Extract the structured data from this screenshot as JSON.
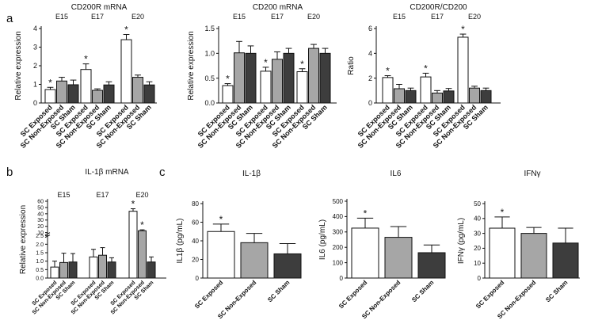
{
  "panel_labels": {
    "a": "a",
    "b": "b",
    "c": "c"
  },
  "chart_data": [
    {
      "id": "cd200r",
      "type": "bar",
      "title": "CD200R mRNA",
      "ylabel": "Relative expression",
      "ylim": [
        0,
        4
      ],
      "yticks": [
        "0",
        "1",
        "2",
        "3",
        "4"
      ],
      "groups": [
        "E15",
        "E17",
        "E20"
      ],
      "categories": [
        "SC Exposed",
        "SC Non-Exposed",
        "SC Sham"
      ],
      "values": [
        [
          0.72,
          1.18,
          0.98
        ],
        [
          1.8,
          0.68,
          0.97
        ],
        [
          3.4,
          1.38,
          0.97
        ]
      ],
      "errors": [
        [
          0.12,
          0.2,
          0.25
        ],
        [
          0.3,
          0.08,
          0.17
        ],
        [
          0.28,
          0.12,
          0.17
        ]
      ],
      "significance": [
        [
          true,
          false,
          false
        ],
        [
          true,
          false,
          false
        ],
        [
          true,
          false,
          false
        ]
      ]
    },
    {
      "id": "cd200",
      "type": "bar",
      "title": "CD200 mRNA",
      "ylabel": "Relative expression",
      "ylim": [
        0,
        1.5
      ],
      "yticks": [
        "0.0",
        "0.5",
        "1.0",
        "1.5"
      ],
      "groups": [
        "E15",
        "E17",
        "E20"
      ],
      "categories": [
        "SC Exposed",
        "SC Non-Exposed",
        "SC Sham"
      ],
      "values": [
        [
          0.35,
          1.01,
          1.0
        ],
        [
          0.64,
          0.88,
          1.0
        ],
        [
          0.63,
          1.1,
          1.0
        ]
      ],
      "errors": [
        [
          0.04,
          0.23,
          0.15
        ],
        [
          0.08,
          0.15,
          0.1
        ],
        [
          0.06,
          0.08,
          0.1
        ]
      ],
      "significance": [
        [
          true,
          false,
          false
        ],
        [
          true,
          false,
          false
        ],
        [
          true,
          false,
          false
        ]
      ]
    },
    {
      "id": "ratio",
      "type": "bar",
      "title": "CD200R/CD200",
      "ylabel": "Ratio",
      "ylim": [
        0,
        6
      ],
      "yticks": [
        "0",
        "2",
        "4",
        "6"
      ],
      "groups": [
        "E15",
        "E17",
        "E20"
      ],
      "categories": [
        "SC Exposed",
        "SC Non-Exposed",
        "SC Sham"
      ],
      "values": [
        [
          2.05,
          1.15,
          1.0
        ],
        [
          2.1,
          0.8,
          0.97
        ],
        [
          5.3,
          1.2,
          1.0
        ]
      ],
      "errors": [
        [
          0.15,
          0.35,
          0.2
        ],
        [
          0.3,
          0.2,
          0.2
        ],
        [
          0.25,
          0.15,
          0.2
        ]
      ],
      "significance": [
        [
          true,
          false,
          false
        ],
        [
          true,
          false,
          false
        ],
        [
          true,
          false,
          false
        ]
      ]
    },
    {
      "id": "il1b_mrna",
      "type": "bar",
      "title": "IL-1β mRNA",
      "ylabel": "Relative expression",
      "ylim": [
        0,
        60
      ],
      "yticks": [
        "0.0",
        "0.5",
        "1.0",
        "1.5",
        "2.0",
        "2.5",
        "10",
        "20",
        "30",
        "40",
        "50",
        "60"
      ],
      "axis_break": {
        "lower": [
          0,
          2.5
        ],
        "upper": [
          10,
          60
        ]
      },
      "groups": [
        "E15",
        "E17",
        "E20"
      ],
      "categories": [
        "SC Exposed",
        "SC Non-Exposed",
        "SC Sham"
      ],
      "values": [
        [
          0.65,
          0.92,
          0.95
        ],
        [
          1.25,
          1.35,
          0.95
        ],
        [
          44,
          13,
          0.95
        ]
      ],
      "errors": [
        [
          0.35,
          0.55,
          0.5
        ],
        [
          0.45,
          0.45,
          0.25
        ],
        [
          4,
          1.5,
          0.3
        ]
      ],
      "significance": [
        [
          false,
          false,
          false
        ],
        [
          false,
          false,
          false
        ],
        [
          true,
          true,
          false
        ]
      ]
    },
    {
      "id": "il1b_protein",
      "type": "bar",
      "title": "IL-1β",
      "ylabel": "IL1β (pg/mL)",
      "ylim": [
        0,
        80
      ],
      "yticks": [
        "0",
        "20",
        "40",
        "60",
        "80"
      ],
      "categories": [
        "SC Exposed",
        "SC Non-Exposed",
        "SC Sham"
      ],
      "values": [
        50,
        38,
        26
      ],
      "errors": [
        8,
        10,
        11
      ],
      "significance": [
        true,
        false,
        false
      ]
    },
    {
      "id": "il6",
      "type": "bar",
      "title": "IL6",
      "ylabel": "IL6 (pg/mL)",
      "ylim": [
        0,
        500
      ],
      "yticks": [
        "0",
        "100",
        "200",
        "300",
        "400",
        "500"
      ],
      "categories": [
        "SC Exposed",
        "SC Non-Exposed",
        "SC Sham"
      ],
      "values": [
        325,
        265,
        165
      ],
      "errors": [
        65,
        70,
        50
      ],
      "significance": [
        true,
        false,
        false
      ]
    },
    {
      "id": "ifng",
      "type": "bar",
      "title": "IFNγ",
      "ylabel": "IFNγ (pg/mL)",
      "ylim": [
        0,
        50
      ],
      "yticks": [
        "0",
        "10",
        "20",
        "30",
        "40",
        "50"
      ],
      "categories": [
        "SC Exposed",
        "SC Non-Exposed",
        "SC Sham"
      ],
      "values": [
        33.5,
        30,
        23.5
      ],
      "errors": [
        7.5,
        4,
        10
      ],
      "significance": [
        true,
        false,
        false
      ]
    }
  ],
  "colors": {
    "exposed": "#ffffff",
    "non_exposed": "#a6a6a6",
    "sham": "#3d3d3d",
    "stroke": "#111111"
  },
  "significance_marker": "*"
}
